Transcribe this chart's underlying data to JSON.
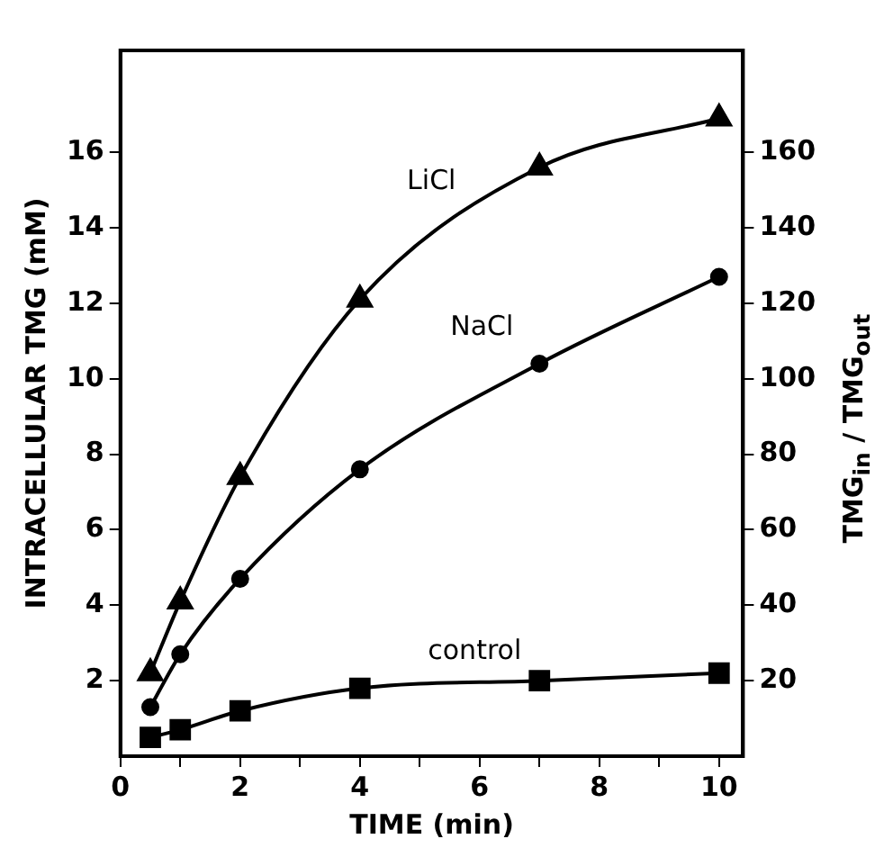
{
  "chart_data": {
    "type": "line",
    "xlabel": "TIME (min)",
    "ylabel": "INTRACELLULAR TMG (mM)",
    "y2label": "TMG$_{in}$ / TMG$_{out}$",
    "x": [
      0.5,
      1,
      2,
      4,
      7,
      10
    ],
    "series": [
      {
        "name": "LiCl",
        "color": "#000000",
        "marker": "triangle",
        "values": [
          2.2,
          4.1,
          7.4,
          12.1,
          15.6,
          16.9
        ]
      },
      {
        "name": "NaCl",
        "color": "#000000",
        "marker": "circle",
        "values": [
          1.3,
          2.7,
          4.7,
          7.6,
          10.4,
          12.7
        ]
      },
      {
        "name": "control",
        "color": "#000000",
        "marker": "square",
        "values": [
          0.5,
          0.7,
          1.2,
          1.8,
          2.0,
          2.2
        ]
      }
    ],
    "xlim": [
      0,
      10.4
    ],
    "xticks": [
      0,
      {
        "value": 1,
        "label": null
      },
      2,
      {
        "value": 3,
        "label": null
      },
      4,
      {
        "value": 5,
        "label": null
      },
      6,
      {
        "value": 7,
        "label": null
      },
      8,
      {
        "value": 9,
        "label": null
      },
      10
    ],
    "ylim": [
      0,
      18.7
    ],
    "yticks": [
      2,
      4,
      6,
      8,
      10,
      12,
      14,
      16
    ],
    "y2lim": [
      0,
      187
    ],
    "y2ticks": [
      20,
      40,
      60,
      80,
      100,
      120,
      140,
      160
    ],
    "grid": false,
    "legend": false
  }
}
